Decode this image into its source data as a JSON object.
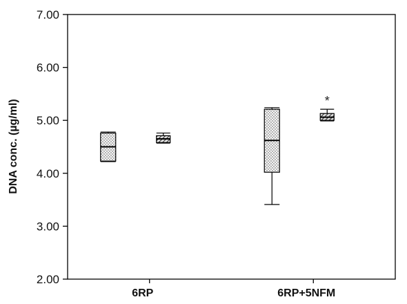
{
  "chart_data": {
    "type": "box",
    "ylabel": "DNA conc. (µg/ml)",
    "ylim": [
      2.0,
      7.0
    ],
    "yticks": [
      "2.00",
      "3.00",
      "4.00",
      "5.00",
      "6.00",
      "7.00"
    ],
    "yticks_values": [
      2.0,
      3.0,
      4.0,
      5.0,
      6.0,
      7.0
    ],
    "categories": [
      "6RP",
      "6RP+5NFM"
    ],
    "grid": false,
    "boxes": [
      {
        "category": "6RP",
        "pattern": "dots",
        "min": 4.22,
        "q1": 4.23,
        "median": 4.5,
        "q3": 4.76,
        "max": 4.78,
        "annotation": ""
      },
      {
        "category": "6RP",
        "pattern": "hatch",
        "min": 4.57,
        "q1": 4.58,
        "median": 4.65,
        "q3": 4.71,
        "max": 4.76,
        "annotation": ""
      },
      {
        "category": "6RP+5NFM",
        "pattern": "dots",
        "min": 3.41,
        "q1": 4.02,
        "median": 4.62,
        "q3": 5.21,
        "max": 5.24,
        "annotation": ""
      },
      {
        "category": "6RP+5NFM",
        "pattern": "hatch",
        "min": 4.99,
        "q1": 5.0,
        "median": 5.06,
        "q3": 5.13,
        "max": 5.21,
        "annotation": "*"
      }
    ]
  }
}
